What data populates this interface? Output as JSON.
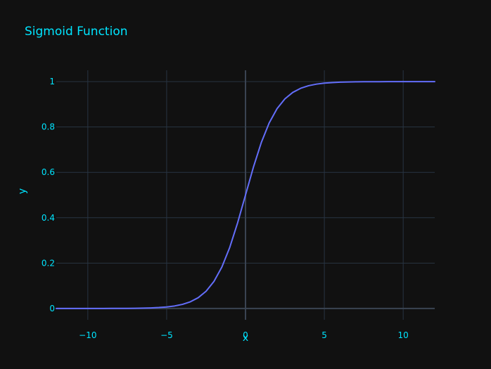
{
  "chart_data": {
    "type": "line",
    "title": "Sigmoid Function",
    "xlabel": "x",
    "ylabel": "y",
    "xlim": [
      -12,
      12
    ],
    "ylim": [
      -0.05,
      1.05
    ],
    "grid": true,
    "x_ticks": [
      -10,
      -5,
      0,
      5,
      10
    ],
    "x_tick_labels": [
      "−10",
      "−5",
      "0",
      "5",
      "10"
    ],
    "y_ticks": [
      0,
      0.2,
      0.4,
      0.6,
      0.8,
      1
    ],
    "y_tick_labels": [
      "0",
      "0.2",
      "0.4",
      "0.6",
      "0.8",
      "1"
    ],
    "series": [
      {
        "x": [
          -12,
          -11.5,
          -11,
          -10.5,
          -10,
          -9.5,
          -9,
          -8.5,
          -8,
          -7.5,
          -7,
          -6.5,
          -6,
          -5.5,
          -5,
          -4.5,
          -4,
          -3.5,
          -3,
          -2.5,
          -2,
          -1.5,
          -1,
          -0.5,
          0,
          0.5,
          1,
          1.5,
          2,
          2.5,
          3,
          3.5,
          4,
          4.5,
          5,
          5.5,
          6,
          6.5,
          7,
          7.5,
          8,
          8.5,
          9,
          9.5,
          10,
          10.5,
          11,
          11.5,
          12
        ],
        "y": [
          6.1e-06,
          1.01e-05,
          1.67e-05,
          2.75e-05,
          4.54e-05,
          7.49e-05,
          0.0001234,
          0.0002035,
          0.0003354,
          0.0005528,
          0.0009111,
          0.0015011,
          0.0024726,
          0.0040701,
          0.0066929,
          0.0109869,
          0.0179862,
          0.0293122,
          0.0474259,
          0.0758582,
          0.1192029,
          0.1824255,
          0.2689414,
          0.3775407,
          0.5,
          0.6224593,
          0.7310586,
          0.8175745,
          0.8807971,
          0.9241418,
          0.9525741,
          0.9706878,
          0.9820138,
          0.9890131,
          0.9933071,
          0.9959299,
          0.9975274,
          0.9984989,
          0.9990889,
          0.9994472,
          0.9996646,
          0.9997965,
          0.9998766,
          0.9999251,
          0.9999546,
          0.9999725,
          0.9999833,
          0.9999899,
          0.9999939
        ]
      }
    ]
  },
  "colors": {
    "background": "#111111",
    "text": "#00e5ff",
    "grid": "#283442",
    "zeroline": "#3a4452",
    "line": "#636efa"
  }
}
